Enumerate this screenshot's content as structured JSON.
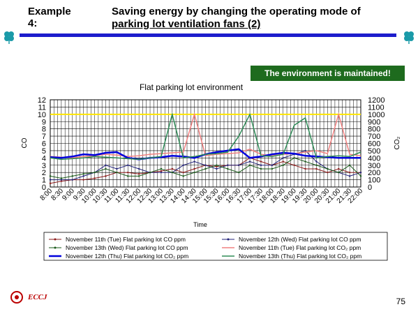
{
  "header": {
    "example_label": "Example 4:",
    "title_line1": "Saving energy by changing the operating mode of",
    "title_line2": "parking lot ventilation fans (2)"
  },
  "banner": "The environment is maintained!",
  "page_number": "75",
  "logo_text": "ECCJ",
  "colors": {
    "rule": "#1d1dcc",
    "banner_bg": "#1e6b1e",
    "clover": "#1a9aa8",
    "limit_line": "#ffe600"
  },
  "chart_data": {
    "type": "line",
    "title": "Flat parking lot environment",
    "xlabel": "Time",
    "ylabel_left": "CO",
    "ylabel_right": "CO₂",
    "y_left_lim": [
      0,
      12
    ],
    "y_right_lim": [
      0,
      1200
    ],
    "y_left_ticks": [
      "0",
      "1",
      "2",
      "3",
      "4",
      "5",
      "6",
      "7",
      "8",
      "9",
      "10",
      "11",
      "12"
    ],
    "y_right_ticks": [
      "0",
      "100",
      "200",
      "300",
      "400",
      "500",
      "600",
      "700",
      "800",
      "900",
      "1000",
      "1100",
      "1200"
    ],
    "x_ticks": [
      "8:00",
      "8:30",
      "9:00",
      "9:30",
      "10:00",
      "10:30",
      "11:00",
      "11:30",
      "12:00",
      "12:30",
      "13:00",
      "13:30",
      "14:00",
      "14:30",
      "15:00",
      "15:30",
      "16:00",
      "16:30",
      "17:00",
      "17:30",
      "18:00",
      "18:30",
      "19:00",
      "19:30",
      "20:00",
      "20:30",
      "21:00",
      "21:30",
      "22:00"
    ],
    "grid": true,
    "limit_line_right_axis": 1000,
    "series": [
      {
        "name": "November 11th (Tue) Flat parking lot CO ppm",
        "axis": "left",
        "color": "#8b1a1a",
        "width": 1,
        "values": [
          0.5,
          0.8,
          1,
          1,
          1.2,
          1.5,
          2,
          2,
          1.8,
          2,
          2.2,
          2.5,
          2,
          2.5,
          3,
          2.8,
          3,
          3,
          4,
          3.5,
          3,
          3.5,
          3,
          2.5,
          2.5,
          2,
          2.5,
          2,
          2
        ]
      },
      {
        "name": "November 12th (Wed) Flat parking lot CO ppm",
        "axis": "left",
        "color": "#22227a",
        "width": 1,
        "values": [
          1,
          1,
          1,
          1.5,
          2,
          3,
          2.5,
          3,
          2.5,
          2,
          2,
          2,
          3,
          3.5,
          3,
          2.5,
          3,
          3,
          3.5,
          3,
          3,
          4,
          4.5,
          5,
          3.5,
          2.5,
          2,
          1.5,
          2
        ]
      },
      {
        "name": "November 13th (Wed) Flat parking lot CO ppm",
        "axis": "left",
        "color": "#1a5a1a",
        "width": 1,
        "values": [
          1.5,
          1.2,
          1.5,
          1.8,
          2,
          2.5,
          2,
          1.5,
          1.5,
          2,
          2.5,
          2,
          1.5,
          2,
          2.5,
          3,
          2.5,
          2,
          3,
          2.5,
          2.5,
          3,
          4,
          3.5,
          3,
          2.5,
          2,
          3,
          1.5
        ]
      },
      {
        "name": "November 11th (Tue) Flat parking lot CO₂ ppm",
        "axis": "right",
        "color": "#f08080",
        "width": 1.5,
        "values": [
          420,
          410,
          400,
          420,
          430,
          450,
          440,
          420,
          430,
          450,
          460,
          470,
          480,
          1000,
          430,
          450,
          460,
          470,
          520,
          450,
          430,
          450,
          460,
          480,
          500,
          460,
          1000,
          450,
          430
        ]
      },
      {
        "name": "November 12th (Thu) Flat parking lot CO₂ ppm",
        "axis": "right",
        "color": "#0000dd",
        "width": 2.5,
        "values": [
          410,
          400,
          420,
          450,
          440,
          470,
          480,
          400,
          380,
          400,
          410,
          430,
          420,
          400,
          450,
          480,
          500,
          520,
          400,
          420,
          450,
          470,
          460,
          430,
          420,
          410,
          400,
          400,
          400
        ]
      },
      {
        "name": "November 13th (Thu) Flat parking lot CO₂ ppm",
        "axis": "right",
        "color": "#2e8b57",
        "width": 1.5,
        "values": [
          400,
          380,
          390,
          400,
          420,
          410,
          400,
          390,
          380,
          400,
          420,
          1000,
          400,
          420,
          450,
          460,
          480,
          700,
          1000,
          430,
          420,
          450,
          850,
          950,
          400,
          420,
          430,
          420,
          480
        ]
      }
    ]
  }
}
